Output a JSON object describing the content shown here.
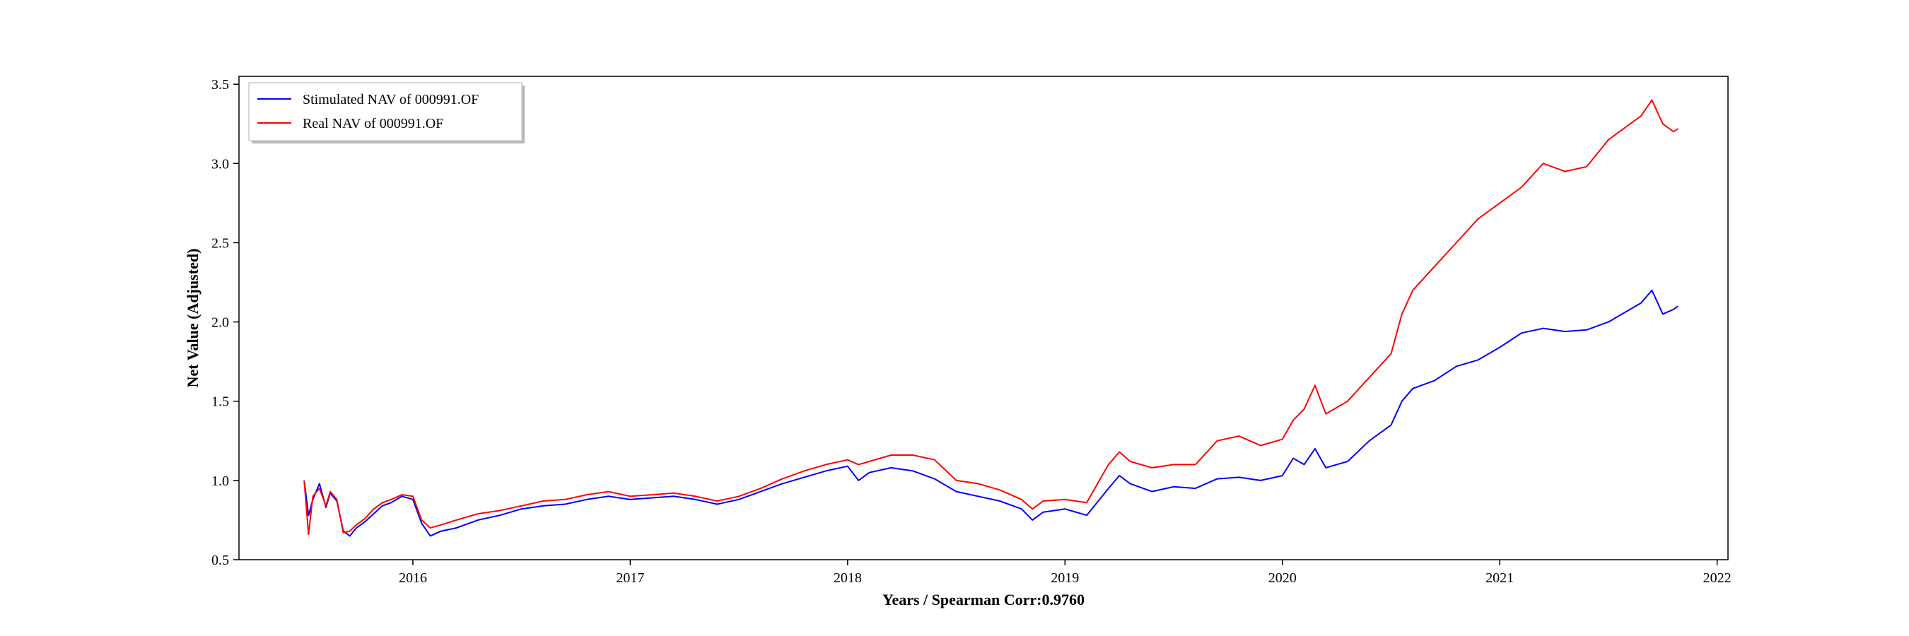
{
  "chart_data": {
    "type": "line",
    "title": "",
    "xlabel": "Years / Spearman Corr:0.9760",
    "ylabel": "Net Value (Adjusted)",
    "xlim": [
      2015.2,
      2022.05
    ],
    "ylim": [
      0.5,
      3.55
    ],
    "x_ticks": [
      2016,
      2017,
      2018,
      2019,
      2020,
      2021,
      2022
    ],
    "x_tick_labels": [
      "2016",
      "2017",
      "2018",
      "2019",
      "2020",
      "2021",
      "2022"
    ],
    "y_ticks": [
      0.5,
      1.0,
      1.5,
      2.0,
      2.5,
      3.0,
      3.5
    ],
    "y_tick_labels": [
      "0.5",
      "1.0",
      "1.5",
      "2.0",
      "2.5",
      "3.0",
      "3.5"
    ],
    "grid": false,
    "legend_position": "top-left",
    "series": [
      {
        "name": "Stimulated NAV of 000991.OF",
        "color": "#0000ff",
        "x": [
          2015.5,
          2015.52,
          2015.54,
          2015.57,
          2015.6,
          2015.62,
          2015.65,
          2015.68,
          2015.71,
          2015.74,
          2015.78,
          2015.82,
          2015.86,
          2015.9,
          2015.95,
          2016.0,
          2016.04,
          2016.08,
          2016.13,
          2016.2,
          2016.3,
          2016.4,
          2016.5,
          2016.6,
          2016.7,
          2016.8,
          2016.9,
          2017.0,
          2017.1,
          2017.2,
          2017.3,
          2017.4,
          2017.5,
          2017.6,
          2017.7,
          2017.8,
          2017.9,
          2018.0,
          2018.05,
          2018.1,
          2018.2,
          2018.3,
          2018.4,
          2018.5,
          2018.6,
          2018.7,
          2018.8,
          2018.85,
          2018.9,
          2019.0,
          2019.1,
          2019.2,
          2019.25,
          2019.3,
          2019.4,
          2019.5,
          2019.6,
          2019.7,
          2019.8,
          2019.9,
          2020.0,
          2020.05,
          2020.1,
          2020.15,
          2020.2,
          2020.3,
          2020.4,
          2020.5,
          2020.55,
          2020.6,
          2020.7,
          2020.8,
          2020.9,
          2021.0,
          2021.1,
          2021.2,
          2021.3,
          2021.4,
          2021.5,
          2021.6,
          2021.65,
          2021.7,
          2021.75,
          2021.8,
          2021.82
        ],
        "y": [
          1.0,
          0.78,
          0.88,
          0.98,
          0.83,
          0.92,
          0.87,
          0.68,
          0.65,
          0.7,
          0.74,
          0.79,
          0.84,
          0.86,
          0.9,
          0.88,
          0.73,
          0.65,
          0.68,
          0.7,
          0.75,
          0.78,
          0.82,
          0.84,
          0.85,
          0.88,
          0.9,
          0.88,
          0.89,
          0.9,
          0.88,
          0.85,
          0.88,
          0.93,
          0.98,
          1.02,
          1.06,
          1.09,
          1.0,
          1.05,
          1.08,
          1.06,
          1.01,
          0.93,
          0.9,
          0.87,
          0.82,
          0.75,
          0.8,
          0.82,
          0.78,
          0.95,
          1.03,
          0.98,
          0.93,
          0.96,
          0.95,
          1.01,
          1.02,
          1.0,
          1.03,
          1.14,
          1.1,
          1.2,
          1.08,
          1.12,
          1.25,
          1.35,
          1.5,
          1.58,
          1.63,
          1.72,
          1.76,
          1.84,
          1.93,
          1.96,
          1.94,
          1.95,
          2.0,
          2.08,
          2.12,
          2.2,
          2.05,
          2.08,
          2.1
        ]
      },
      {
        "name": "Real NAV of 000991.OF",
        "color": "#ff0000",
        "x": [
          2015.5,
          2015.52,
          2015.54,
          2015.57,
          2015.6,
          2015.62,
          2015.65,
          2015.68,
          2015.71,
          2015.74,
          2015.78,
          2015.82,
          2015.86,
          2015.9,
          2015.95,
          2016.0,
          2016.04,
          2016.08,
          2016.13,
          2016.2,
          2016.3,
          2016.4,
          2016.5,
          2016.6,
          2016.7,
          2016.8,
          2016.9,
          2017.0,
          2017.1,
          2017.2,
          2017.3,
          2017.4,
          2017.5,
          2017.6,
          2017.7,
          2017.8,
          2017.9,
          2018.0,
          2018.05,
          2018.1,
          2018.2,
          2018.3,
          2018.4,
          2018.5,
          2018.6,
          2018.7,
          2018.8,
          2018.85,
          2018.9,
          2019.0,
          2019.1,
          2019.2,
          2019.25,
          2019.3,
          2019.4,
          2019.5,
          2019.6,
          2019.7,
          2019.8,
          2019.9,
          2020.0,
          2020.05,
          2020.1,
          2020.15,
          2020.2,
          2020.3,
          2020.4,
          2020.5,
          2020.55,
          2020.6,
          2020.7,
          2020.8,
          2020.9,
          2021.0,
          2021.1,
          2021.2,
          2021.3,
          2021.4,
          2021.5,
          2021.6,
          2021.65,
          2021.7,
          2021.75,
          2021.8,
          2021.82
        ],
        "y": [
          1.0,
          0.66,
          0.9,
          0.95,
          0.84,
          0.93,
          0.88,
          0.67,
          0.68,
          0.72,
          0.76,
          0.82,
          0.86,
          0.88,
          0.91,
          0.9,
          0.75,
          0.7,
          0.72,
          0.75,
          0.79,
          0.81,
          0.84,
          0.87,
          0.88,
          0.91,
          0.93,
          0.9,
          0.91,
          0.92,
          0.9,
          0.87,
          0.9,
          0.95,
          1.01,
          1.06,
          1.1,
          1.13,
          1.1,
          1.12,
          1.16,
          1.16,
          1.13,
          1.0,
          0.98,
          0.94,
          0.88,
          0.82,
          0.87,
          0.88,
          0.86,
          1.1,
          1.18,
          1.12,
          1.08,
          1.1,
          1.1,
          1.25,
          1.28,
          1.22,
          1.26,
          1.38,
          1.45,
          1.6,
          1.42,
          1.5,
          1.65,
          1.8,
          2.05,
          2.2,
          2.35,
          2.5,
          2.65,
          2.75,
          2.85,
          3.0,
          2.95,
          2.98,
          3.15,
          3.25,
          3.3,
          3.4,
          3.25,
          3.2,
          3.22
        ]
      }
    ]
  }
}
